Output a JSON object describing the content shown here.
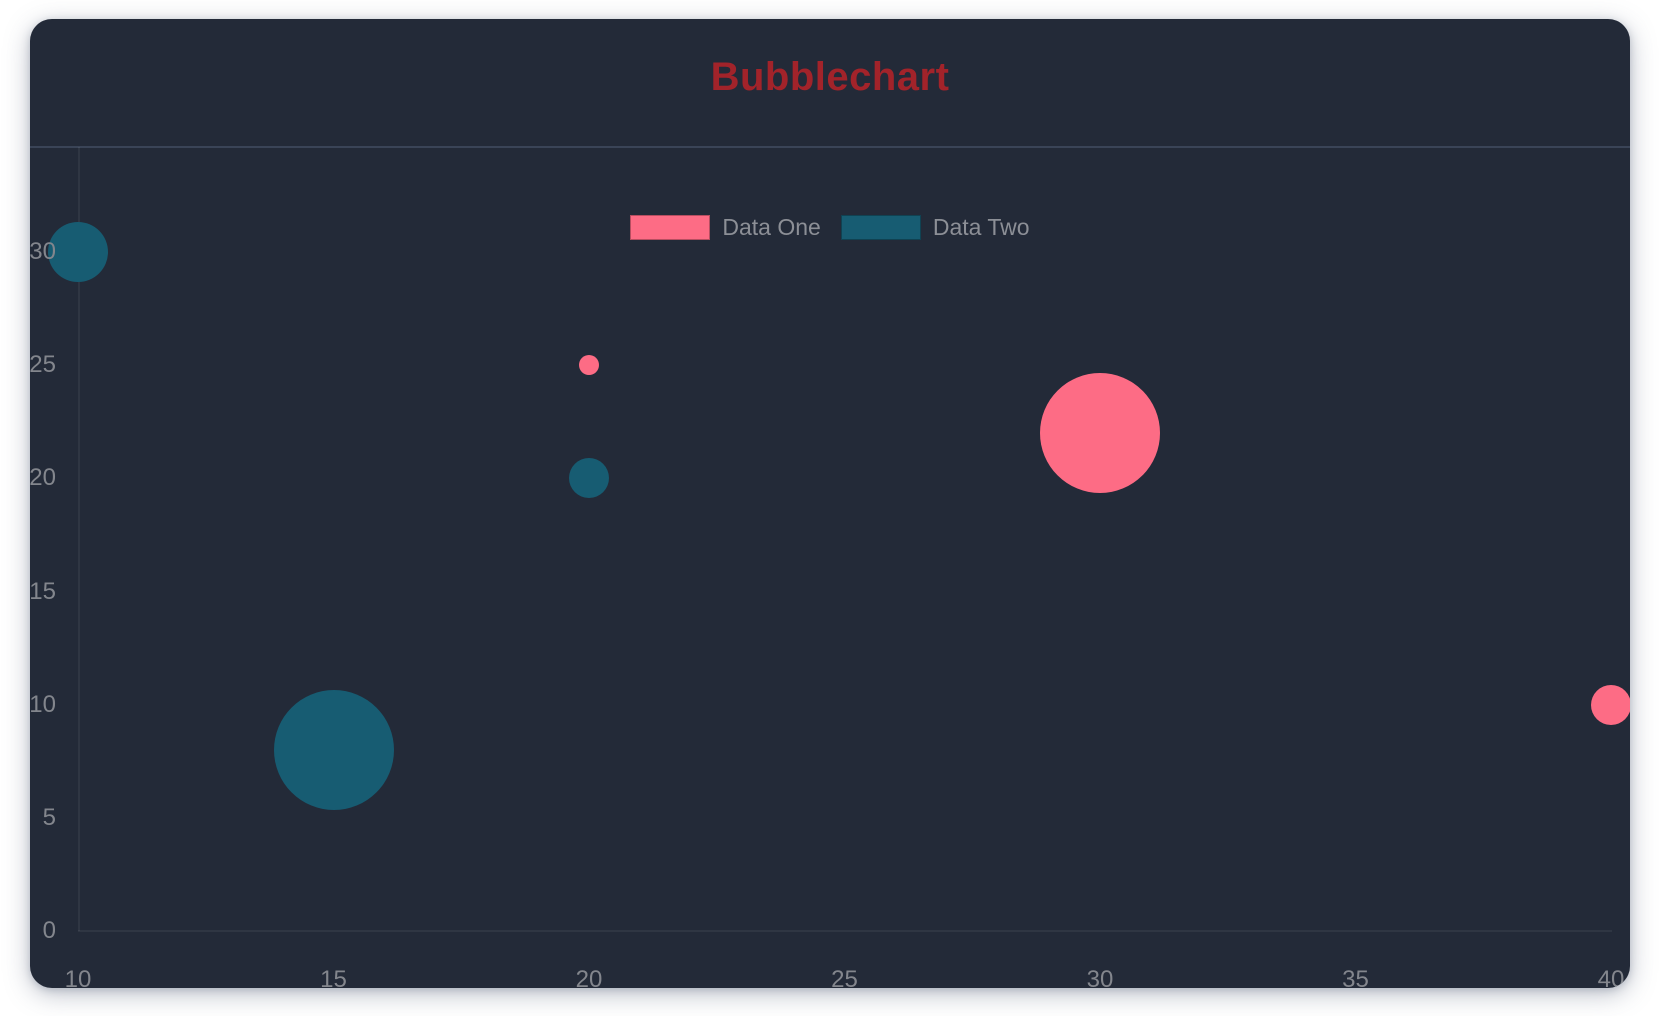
{
  "card": {
    "background": "#232a38"
  },
  "chart_data": {
    "type": "scatter",
    "subtype": "bubble",
    "title": "Bubblechart",
    "title_color": "#a2232a",
    "legend_position": "top",
    "series": [
      {
        "name": "Data One",
        "color": "#fd6c85",
        "points": [
          {
            "x": 20,
            "y": 25,
            "r": 5
          },
          {
            "x": 30,
            "y": 22,
            "r": 30
          },
          {
            "x": 40,
            "y": 10,
            "r": 10
          }
        ]
      },
      {
        "name": "Data Two",
        "color": "#175c72",
        "points": [
          {
            "x": 10,
            "y": 30,
            "r": 15
          },
          {
            "x": 20,
            "y": 20,
            "r": 10
          },
          {
            "x": 15,
            "y": 8,
            "r": 30
          }
        ]
      }
    ],
    "x_ticks": [
      "10",
      "15",
      "20",
      "25",
      "30",
      "35",
      "40"
    ],
    "y_ticks": [
      "0",
      "5",
      "10",
      "15",
      "20",
      "25",
      "30"
    ],
    "xlim": [
      10,
      40
    ],
    "ylim": [
      0,
      30
    ],
    "grid": false,
    "tick_color": "#83868d",
    "legend_text_color": "#8c8f96"
  }
}
